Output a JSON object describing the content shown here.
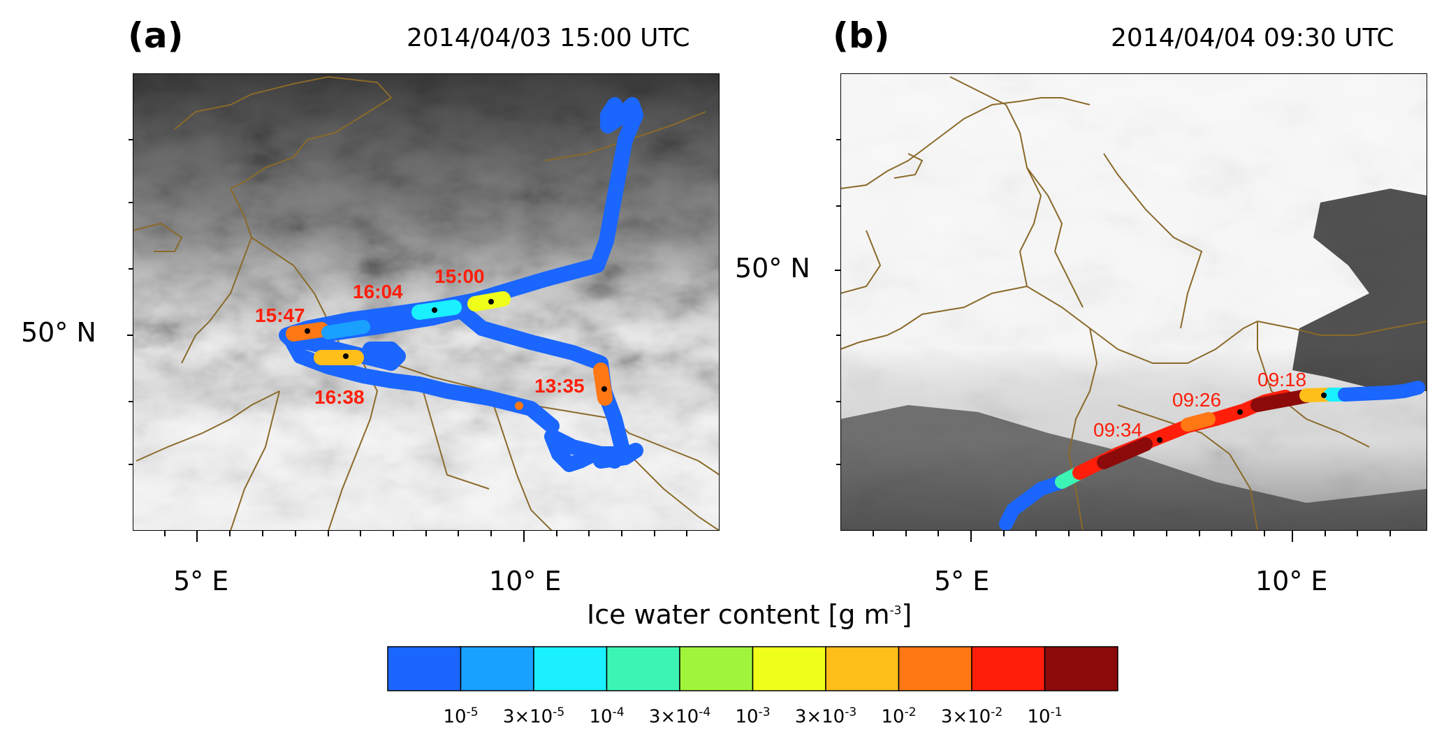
{
  "panel_a": {
    "label": "(a)",
    "title": "2014/04/03 15:00 UTC",
    "lat_label": "50° N",
    "lon_labels": [
      "5° E",
      "10° E"
    ],
    "time_labels": [
      "15:00",
      "16:04",
      "15:47",
      "16:38",
      "13:35"
    ]
  },
  "panel_b": {
    "label": "(b)",
    "title": "2014/04/04 09:30 UTC",
    "lat_label": "50° N",
    "lon_labels": [
      "5° E",
      "10° E"
    ],
    "time_labels": [
      "09:18",
      "09:26",
      "09:34"
    ]
  },
  "colorbar": {
    "title": "Ice water content [g m",
    "title_sup": "-3",
    "title_end": "]",
    "colors": [
      "#1a66ff",
      "#1aa0ff",
      "#1af0ff",
      "#3cf5b4",
      "#a0f53c",
      "#f0ff1a",
      "#ffbe1a",
      "#ff7814",
      "#ff1e0a",
      "#8c0a0a"
    ],
    "ticks": [
      {
        "base": "10",
        "sup": "-5"
      },
      {
        "base": "3×10",
        "sup": "-5"
      },
      {
        "base": "10",
        "sup": "-4"
      },
      {
        "base": "3×10",
        "sup": "-4"
      },
      {
        "base": "10",
        "sup": "-3"
      },
      {
        "base": "3×10",
        "sup": "-3"
      },
      {
        "base": "10",
        "sup": "-2"
      },
      {
        "base": "3×10",
        "sup": "-2"
      },
      {
        "base": "10",
        "sup": "-1"
      }
    ]
  }
}
